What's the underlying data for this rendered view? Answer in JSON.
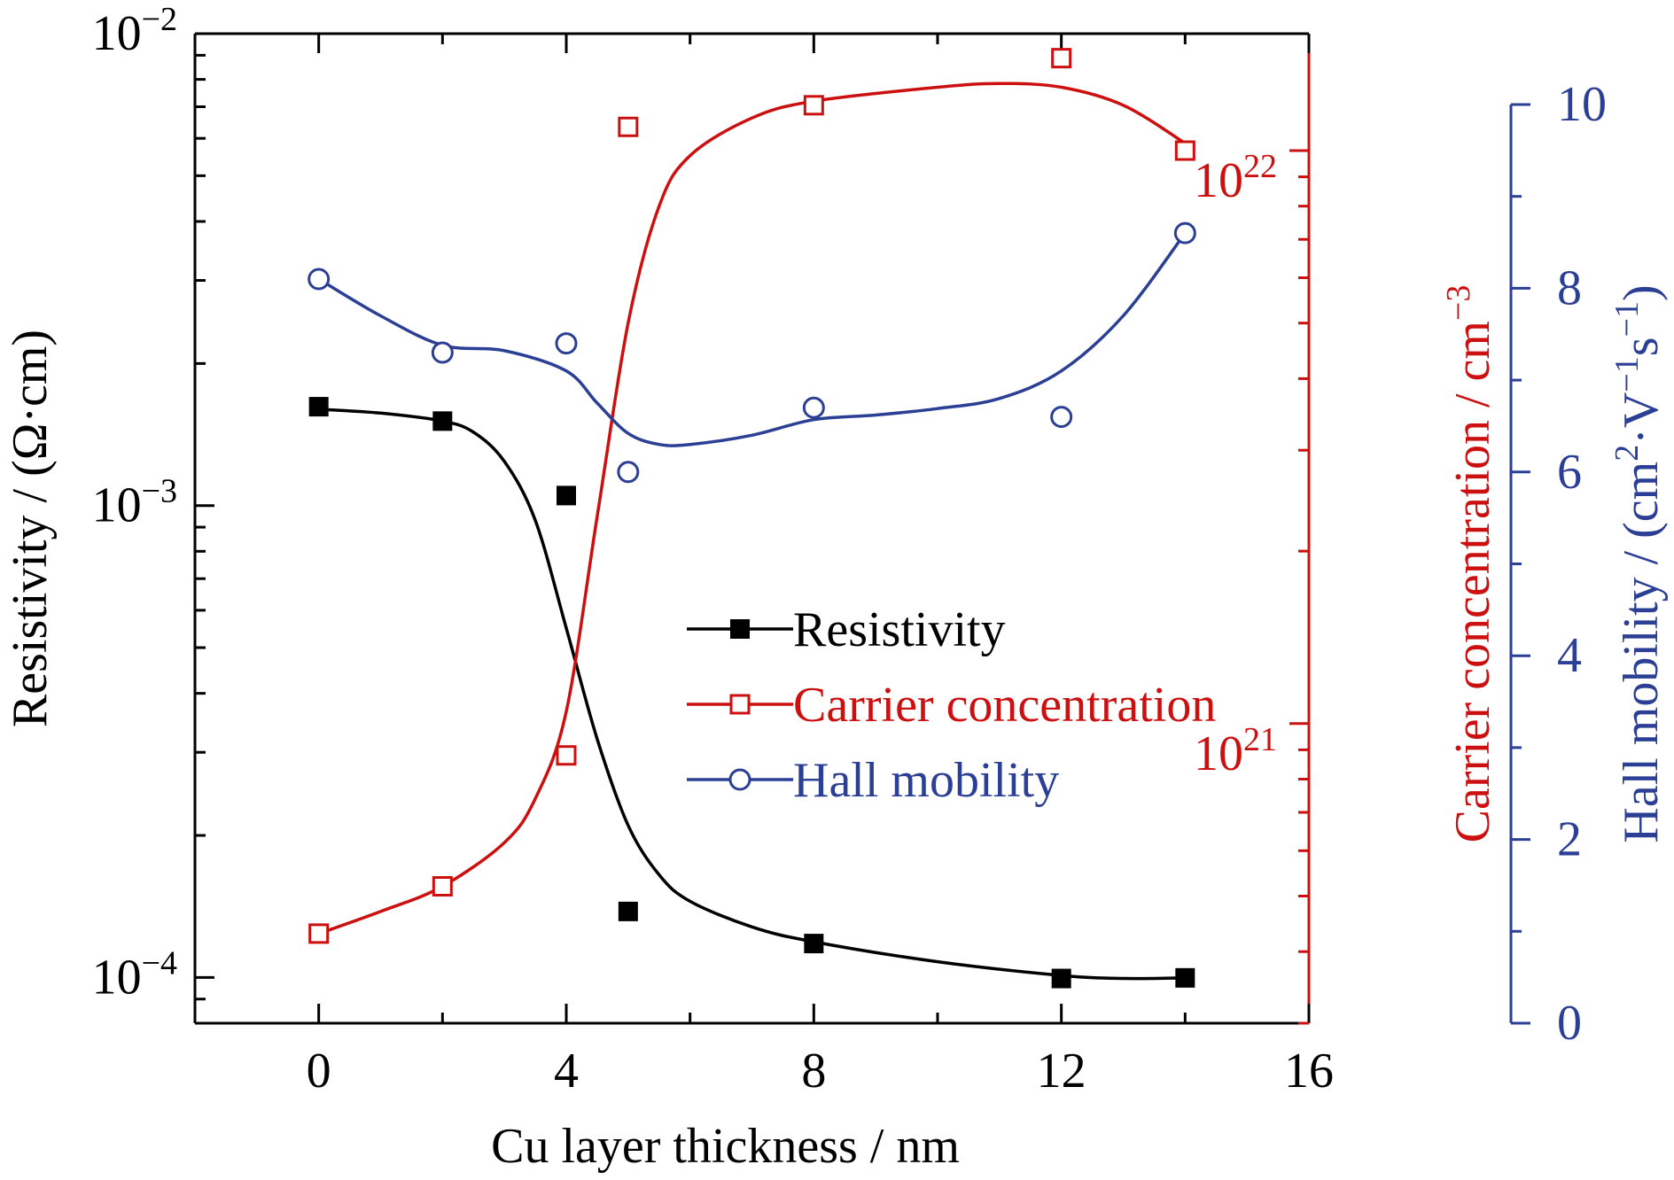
{
  "chart_data": {
    "type": "line",
    "x": [
      0,
      2,
      4,
      5,
      8,
      12,
      14
    ],
    "xlabel": "Cu layer thickness / nm",
    "xlim": [
      -2,
      16
    ],
    "xticks": [
      "0",
      "4",
      "8",
      "12",
      "16"
    ],
    "y_left": {
      "label": "Resistivity / (Ω·cm)",
      "scale": "log",
      "lim": [
        8e-05,
        0.01
      ],
      "ticks": [
        {
          "base": "10",
          "exp": "−2"
        },
        {
          "base": "10",
          "exp": "−3"
        },
        {
          "base": "10",
          "exp": "−4"
        }
      ],
      "color": "#000000"
    },
    "y_right1": {
      "label": "Carrier concentration / cm",
      "label_sup": "−3",
      "scale": "log",
      "lim": [
        3e+20,
        1.6e+22
      ],
      "ticks": [
        {
          "base": "10",
          "exp": "22"
        },
        {
          "base": "10",
          "exp": "21"
        }
      ],
      "color": "#cc1010"
    },
    "y_right2": {
      "label": "Hall mobility / (cm",
      "label_parts": [
        "Hall mobility / (cm",
        "2",
        "·V",
        "−1",
        "s",
        "−1",
        ")"
      ],
      "scale": "linear",
      "lim": [
        0,
        10
      ],
      "ticks": [
        "0",
        "2",
        "4",
        "6",
        "8",
        "10"
      ],
      "color": "#2b3f95"
    },
    "series": [
      {
        "name": "Resistivity",
        "axis": "y_left",
        "marker": "filled-square",
        "color": "#000000",
        "values": [
          0.00162,
          0.00151,
          0.00105,
          0.000138,
          0.000118,
          9.95e-05,
          9.98e-05
        ],
        "curve_x": [
          0,
          1,
          2,
          2.5,
          3,
          3.5,
          4,
          4.5,
          5,
          5.5,
          6,
          7,
          8,
          10,
          12,
          13,
          14
        ],
        "curve_y": [
          0.0016,
          0.00157,
          0.00151,
          0.00143,
          0.00124,
          0.00093,
          0.00055,
          0.00032,
          0.00021,
          0.000165,
          0.000145,
          0.000128,
          0.000119,
          0.000108,
          0.000101,
          9.95e-05,
          9.98e-05
        ]
      },
      {
        "name": "Carrier concentration",
        "axis": "y_right1",
        "marker": "open-square",
        "color": "#cc1010",
        "values": [
          4.3e+20,
          5.2e+20,
          8.8e+20,
          1.1e+22,
          1.2e+22,
          1.45e+22,
          1e+22
        ],
        "curve_x": [
          0,
          1,
          2,
          3,
          3.5,
          4,
          4.5,
          5,
          5.5,
          6,
          7,
          8,
          10,
          11,
          12,
          13,
          14
        ],
        "curve_y": [
          4.3e+20,
          4.7e+20,
          5.2e+20,
          6.2e+20,
          7.4e+20,
          1.05e+21,
          2.3e+21,
          5e+21,
          8e+21,
          9.8e+21,
          1.14e+22,
          1.22e+22,
          1.29e+22,
          1.31e+22,
          1.29e+22,
          1.2e+22,
          1.03e+22
        ]
      },
      {
        "name": "Hall mobility",
        "axis": "y_right2",
        "marker": "open-circle",
        "color": "#2b3f95",
        "values": [
          8.1,
          7.3,
          7.4,
          6.0,
          6.7,
          6.6,
          8.6
        ],
        "curve_x": [
          0,
          1,
          2,
          3,
          4,
          4.5,
          5,
          5.5,
          6,
          7,
          8,
          9,
          10,
          11,
          12,
          13,
          14
        ],
        "curve_y": [
          8.1,
          7.7,
          7.38,
          7.32,
          7.1,
          6.75,
          6.42,
          6.3,
          6.3,
          6.4,
          6.57,
          6.62,
          6.69,
          6.8,
          7.1,
          7.7,
          8.6
        ]
      }
    ],
    "legend": {
      "placement": "center",
      "entries": [
        "Resistivity",
        "Carrier concentration",
        "Hall mobility"
      ]
    }
  }
}
